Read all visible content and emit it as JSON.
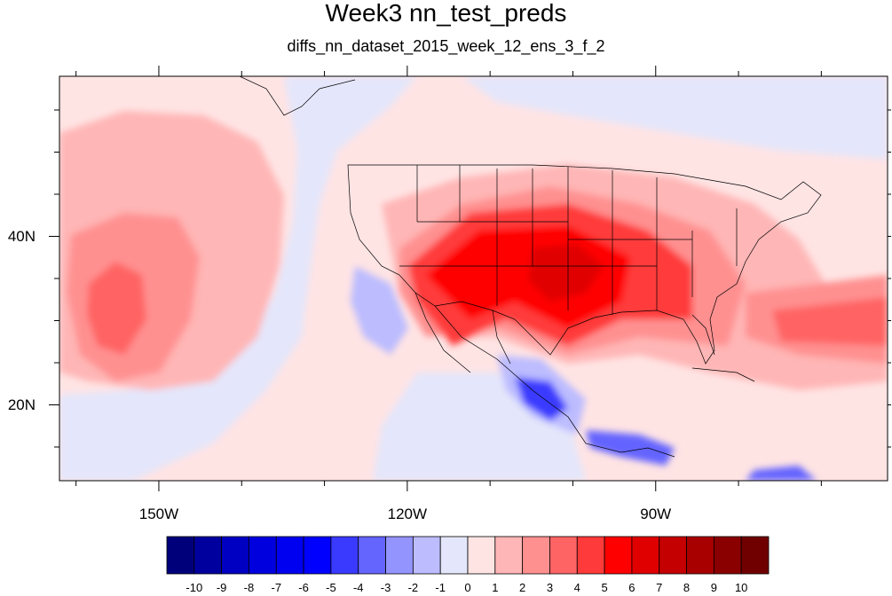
{
  "title": "Week3 nn_test_preds",
  "subtitle": "diffs_nn_dataset_2015_week_12_ens_3_f_2",
  "map": {
    "lon_range": [
      -162,
      -62
    ],
    "lat_range": [
      11,
      59
    ],
    "lat_ticks": [
      {
        "value": 40,
        "label": "40N"
      },
      {
        "value": 20,
        "label": "20N"
      }
    ],
    "lon_ticks": [
      {
        "value": -150,
        "label": "150W"
      },
      {
        "value": -120,
        "label": "120W"
      },
      {
        "value": -90,
        "label": "90W"
      }
    ]
  },
  "colorbar": {
    "labels": [
      "-10",
      "-9",
      "-8",
      "-7",
      "-6",
      "-5",
      "-4",
      "-3",
      "-2",
      "-1",
      "0",
      "1",
      "2",
      "3",
      "4",
      "5",
      "6",
      "7",
      "8",
      "9",
      "10"
    ],
    "colors": [
      "#00007a",
      "#00009e",
      "#0000c2",
      "#0000de",
      "#0000f0",
      "#0000ff",
      "#3a3aff",
      "#6464ff",
      "#9494ff",
      "#bcbcff",
      "#e4e6fb",
      "#ffe4e4",
      "#ffb6b6",
      "#ff9090",
      "#ff6464",
      "#ff3a3a",
      "#ff0000",
      "#e00000",
      "#c40000",
      "#a80000",
      "#8a0000",
      "#700000"
    ]
  }
}
